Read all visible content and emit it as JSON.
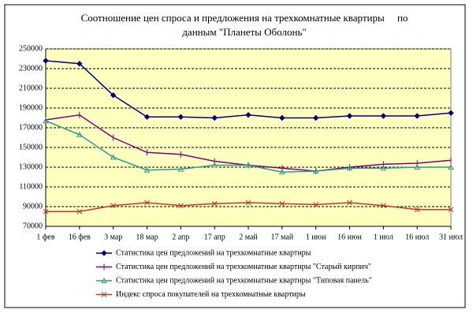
{
  "chart_data": {
    "type": "line",
    "title": "Соотношение цен спроса и предложения на трехкомнатные квартиры     по данным \"Планеты Оболонь\"",
    "categories": [
      "1 фев",
      "16 фев",
      "3 мар",
      "18 мар",
      "2 апр",
      "17 апр",
      "2 май",
      "17 май",
      "1 июн",
      "16 июн",
      "1 июл",
      "16 июл",
      "31 июл"
    ],
    "series": [
      {
        "name": "Статистика цен предложений на трехкомнатные квартиры",
        "color": "#000080",
        "marker": "diamond",
        "values": [
          238000,
          235000,
          203000,
          181000,
          181000,
          180000,
          183000,
          180000,
          180000,
          182000,
          182000,
          182000,
          185000
        ]
      },
      {
        "name": "Статистика цен предложений на трехкомнатные квартиры \"Старый кирпич\"",
        "color": "#800080",
        "marker": "cross",
        "values": [
          178000,
          183000,
          160000,
          145000,
          143000,
          136000,
          132000,
          129000,
          126000,
          130000,
          133000,
          134000,
          137000
        ]
      },
      {
        "name": "Статистика цен предложений на трехкомнатные квартиры \"Типовая панель\"",
        "color": "#2e9c8c",
        "marker": "triangle",
        "values": [
          177000,
          163000,
          140000,
          127000,
          128000,
          132000,
          132000,
          125000,
          126000,
          129000,
          129000,
          130000,
          130000
        ]
      },
      {
        "name": "Индекс спроса покупателей  на трехкомнатные квартиры",
        "color": "#c0392b",
        "marker": "x",
        "values": [
          85000,
          85000,
          91000,
          94000,
          91000,
          93000,
          94000,
          93000,
          92000,
          94000,
          91000,
          87000,
          87000
        ]
      }
    ],
    "ylim": [
      70000,
      250000
    ],
    "yticks": [
      70000,
      90000,
      110000,
      130000,
      150000,
      170000,
      190000,
      210000,
      230000,
      250000
    ],
    "grid": true,
    "legend": "bottom",
    "plot_background": "#ffffc0"
  }
}
